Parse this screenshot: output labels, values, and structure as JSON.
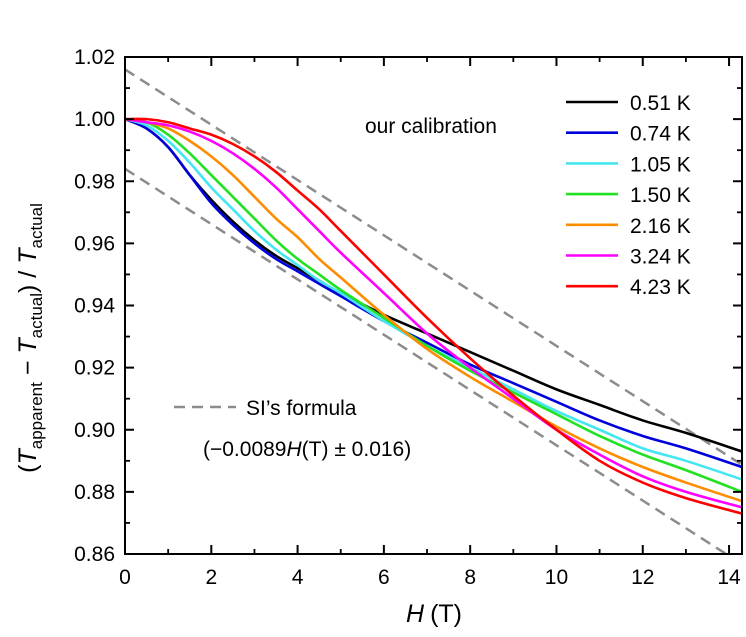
{
  "chart_data": {
    "type": "line",
    "xlabel": {
      "italic": "H",
      "unit": "(T)"
    },
    "ylabel": {
      "open": "(",
      "t1": "T",
      "sub1": "apparent",
      "minus": " − ",
      "t2": "T",
      "sub2": "actual",
      "close": ") / ",
      "t3": "T",
      "sub3": "actual"
    },
    "xlim": [
      0,
      14.3
    ],
    "ylim": [
      0.86,
      1.02
    ],
    "xticks": [
      0,
      2,
      4,
      6,
      8,
      10,
      12,
      14
    ],
    "xtick_labels": [
      "0",
      "2",
      "4",
      "6",
      "8",
      "10",
      "12",
      "14"
    ],
    "yticks": [
      0.86,
      0.88,
      0.9,
      0.92,
      0.94,
      0.96,
      0.98,
      1.0,
      1.02
    ],
    "ytick_labels": [
      "0.86",
      "0.88",
      "0.90",
      "0.92",
      "0.94",
      "0.96",
      "0.98",
      "1.00",
      "1.02"
    ],
    "x": [
      0,
      0.5,
      1,
      1.5,
      2,
      2.5,
      3,
      3.5,
      4,
      4.5,
      5,
      6,
      7,
      8,
      9,
      10,
      11,
      12,
      13,
      14.3
    ],
    "series": [
      {
        "name": "0.51 K",
        "color": "#000000",
        "values": [
          1.0,
          0.997,
          0.991,
          0.982,
          0.974,
          0.967,
          0.961,
          0.956,
          0.952,
          0.948,
          0.944,
          0.937,
          0.931,
          0.925,
          0.919,
          0.913,
          0.908,
          0.903,
          0.899,
          0.893
        ]
      },
      {
        "name": "0.74 K",
        "color": "#0000dd",
        "values": [
          1.0,
          0.997,
          0.991,
          0.982,
          0.973,
          0.966,
          0.96,
          0.955,
          0.951,
          0.947,
          0.943,
          0.935,
          0.928,
          0.921,
          0.915,
          0.909,
          0.903,
          0.898,
          0.894,
          0.888
        ]
      },
      {
        "name": "1.05 K",
        "color": "#44e6f2",
        "values": [
          1.0,
          0.998,
          0.993,
          0.986,
          0.978,
          0.971,
          0.964,
          0.958,
          0.953,
          0.948,
          0.944,
          0.935,
          0.927,
          0.92,
          0.913,
          0.906,
          0.9,
          0.894,
          0.89,
          0.884
        ]
      },
      {
        "name": "1.50 K",
        "color": "#22e022",
        "values": [
          1.0,
          0.999,
          0.995,
          0.989,
          0.982,
          0.975,
          0.968,
          0.961,
          0.955,
          0.95,
          0.945,
          0.936,
          0.927,
          0.919,
          0.912,
          0.905,
          0.898,
          0.892,
          0.887,
          0.88
        ]
      },
      {
        "name": "2.16 K",
        "color": "#ff8c00",
        "values": [
          1.0,
          0.999,
          0.997,
          0.993,
          0.988,
          0.982,
          0.975,
          0.968,
          0.962,
          0.955,
          0.949,
          0.937,
          0.926,
          0.917,
          0.909,
          0.901,
          0.894,
          0.888,
          0.883,
          0.877
        ]
      },
      {
        "name": "3.24 K",
        "color": "#ff00ff",
        "values": [
          1.0,
          0.999,
          0.998,
          0.996,
          0.993,
          0.989,
          0.984,
          0.978,
          0.971,
          0.964,
          0.957,
          0.944,
          0.931,
          0.92,
          0.91,
          0.9,
          0.892,
          0.885,
          0.88,
          0.875
        ]
      },
      {
        "name": "4.23 K",
        "color": "#ff0000",
        "values": [
          1.0,
          1.0,
          0.999,
          0.997,
          0.995,
          0.992,
          0.988,
          0.983,
          0.977,
          0.971,
          0.964,
          0.95,
          0.936,
          0.923,
          0.911,
          0.9,
          0.89,
          0.883,
          0.878,
          0.873
        ]
      }
    ],
    "reference": {
      "name": "SI’s formula",
      "formula_text": "(−0.0089H(T) ± 0.016)",
      "formula_parts": {
        "open": "(−0.0089",
        "italic": "H",
        "rest": "(T) ± 0.016)"
      },
      "slope": -0.0089,
      "offset": 1.0,
      "band": 0.016,
      "color": "#8c8c8c",
      "dash": "dashed"
    },
    "annotations": {
      "calibration": "our calibration"
    },
    "legend_position": "top-right"
  }
}
